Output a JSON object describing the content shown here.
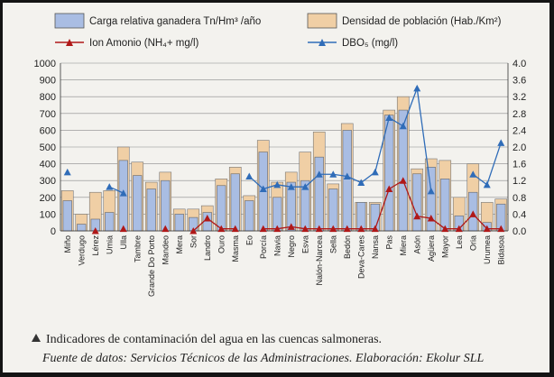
{
  "chart_data": {
    "type": "bar",
    "categories": [
      "Miño",
      "Verdugo",
      "Lérez",
      "Umia",
      "Ulla",
      "Tambre",
      "Grande Do Porto",
      "Mandeo",
      "Mera",
      "Sor",
      "Landro",
      "Ouro",
      "Masma",
      "Eo",
      "Porcía",
      "Navia",
      "Negro",
      "Esva",
      "Nalón-Narcea",
      "Sella",
      "Bedón",
      "Deva-Cares",
      "Nansa",
      "Pas",
      "Miera",
      "Asón",
      "Agüera",
      "Mayor",
      "Lea",
      "Oria",
      "Urumea",
      "Bidasoa"
    ],
    "series": [
      {
        "name": "Carga relativa ganadera Tn/Hm³ /año",
        "kind": "bar",
        "axis": "left",
        "color": "#a9bde3",
        "values": [
          180,
          40,
          70,
          110,
          420,
          330,
          250,
          300,
          100,
          80,
          110,
          270,
          340,
          180,
          470,
          200,
          290,
          300,
          440,
          250,
          600,
          170,
          160,
          690,
          720,
          340,
          380,
          310,
          90,
          230,
          50,
          160
        ]
      },
      {
        "name": "Densidad de población (Hab./Km²)",
        "kind": "bar",
        "axis": "left",
        "color": "#f0cfa5",
        "values": [
          240,
          100,
          230,
          240,
          500,
          410,
          290,
          350,
          130,
          130,
          150,
          310,
          380,
          210,
          540,
          290,
          350,
          470,
          590,
          280,
          640,
          170,
          170,
          720,
          800,
          370,
          430,
          420,
          200,
          400,
          170,
          190
        ]
      },
      {
        "name": "Ion Amonio (NH₄+ mg/l)",
        "kind": "line",
        "axis": "right",
        "color": "#b01818",
        "values": [
          null,
          null,
          0.0,
          null,
          0.05,
          null,
          null,
          0.05,
          null,
          0.0,
          0.3,
          0.05,
          0.05,
          null,
          0.05,
          0.05,
          0.1,
          0.05,
          0.05,
          0.05,
          0.05,
          0.05,
          0.05,
          1.0,
          1.2,
          0.35,
          0.3,
          0.05,
          0.05,
          0.4,
          0.05,
          0.05
        ]
      },
      {
        "name": "DBO₅ (mg/l)",
        "kind": "line",
        "axis": "right",
        "color": "#2f6cb8",
        "values": [
          1.4,
          null,
          null,
          1.05,
          0.9,
          null,
          null,
          null,
          null,
          null,
          null,
          null,
          null,
          1.3,
          1.0,
          1.1,
          1.05,
          1.05,
          1.35,
          1.35,
          1.3,
          1.15,
          1.4,
          2.7,
          2.5,
          3.4,
          0.95,
          null,
          null,
          1.35,
          1.1,
          2.1
        ]
      }
    ],
    "ylim_left": [
      0,
      1000
    ],
    "ylim_right": [
      0,
      4.0
    ],
    "yticks_left": [
      "0",
      "100",
      "200",
      "300",
      "400",
      "500",
      "600",
      "700",
      "800",
      "900",
      "1000"
    ],
    "yticks_right": [
      "0.0",
      "0.4",
      "0.8",
      "1.2",
      "1.6",
      "2.0",
      "2.4",
      "2.8",
      "3.2",
      "3.6",
      "4.0"
    ],
    "legend": "top",
    "grid": true
  },
  "caption": "Indicadores de contaminación del agua en las cuencas salmoneras.",
  "source": "Fuente de datos: Servicios Técnicos de las Administraciones. Elaboración: Ekolur SLL",
  "colors": {
    "bar_carga": "#a9bde3",
    "bar_densidad": "#f0cfa5",
    "line_amonio": "#b01818",
    "line_dbo": "#2f6cb8",
    "grid": "#8a8a8a"
  }
}
